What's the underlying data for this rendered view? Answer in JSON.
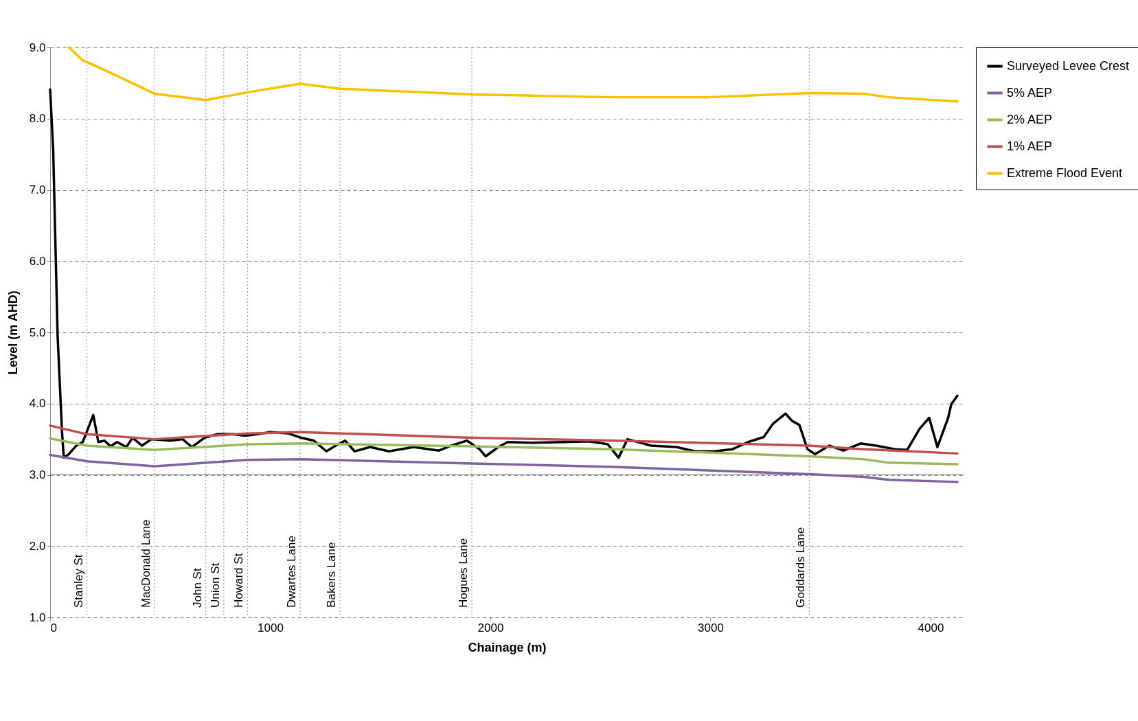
{
  "chart_data": {
    "type": "line",
    "xlabel": "Chainage (m)",
    "ylabel": "Level (m AHD)",
    "xlim": [
      0,
      4150
    ],
    "xticks": [
      0,
      1000,
      2000,
      3000,
      4000
    ],
    "ylim": [
      1,
      9
    ],
    "yticks": [
      {
        "value": 1,
        "label": "1.0"
      },
      {
        "value": 2,
        "label": "2.0"
      },
      {
        "value": 3,
        "label": "3.0"
      },
      {
        "value": 4,
        "label": "4.0"
      },
      {
        "value": 5,
        "label": "5.0"
      },
      {
        "value": 6,
        "label": "6.0"
      },
      {
        "value": 7,
        "label": "7.0"
      },
      {
        "value": 8,
        "label": "8.0"
      },
      {
        "value": 9,
        "label": "9.0"
      }
    ],
    "grid": "y",
    "legend": "right",
    "line_style": "solid",
    "series": [
      {
        "name": "Surveyed Levee Crest",
        "color": "#000000",
        "x": [
          0,
          14,
          34,
          54,
          62,
          85,
          119,
          148,
          176,
          196,
          219,
          247,
          275,
          304,
          346,
          375,
          417,
          460,
          545,
          602,
          644,
          701,
          758,
          829,
          886,
          943,
          999,
          1084,
          1141,
          1198,
          1255,
          1297,
          1340,
          1383,
          1454,
          1539,
          1652,
          1766,
          1823,
          1894,
          1951,
          1979,
          2036,
          2079,
          2192,
          2334,
          2447,
          2533,
          2583,
          2623,
          2731,
          2845,
          2930,
          3015,
          3100,
          3171,
          3242,
          3285,
          3341,
          3370,
          3404,
          3441,
          3475,
          3540,
          3605,
          3682,
          3753,
          3838,
          3894,
          3951,
          3994,
          4031,
          4080,
          4094,
          4122
        ],
        "values": [
          8.41,
          7.55,
          4.95,
          3.6,
          3.24,
          3.29,
          3.41,
          3.46,
          3.68,
          3.84,
          3.46,
          3.48,
          3.4,
          3.46,
          3.39,
          3.52,
          3.41,
          3.5,
          3.48,
          3.5,
          3.39,
          3.52,
          3.57,
          3.57,
          3.55,
          3.57,
          3.6,
          3.58,
          3.52,
          3.48,
          3.33,
          3.41,
          3.48,
          3.33,
          3.39,
          3.33,
          3.39,
          3.34,
          3.41,
          3.48,
          3.36,
          3.26,
          3.39,
          3.46,
          3.45,
          3.46,
          3.47,
          3.43,
          3.24,
          3.5,
          3.41,
          3.39,
          3.33,
          3.33,
          3.36,
          3.46,
          3.53,
          3.72,
          3.86,
          3.76,
          3.7,
          3.36,
          3.29,
          3.41,
          3.34,
          3.44,
          3.41,
          3.36,
          3.35,
          3.65,
          3.8,
          3.39,
          3.8,
          3.99,
          4.11
        ]
      },
      {
        "name": "5% AEP",
        "color": "#8064a2",
        "x": [
          0,
          167,
          474,
          897,
          1136,
          1916,
          2561,
          3449,
          3696,
          3810,
          4122
        ],
        "values": [
          3.28,
          3.19,
          3.12,
          3.21,
          3.22,
          3.16,
          3.11,
          3.01,
          2.97,
          2.93,
          2.9
        ]
      },
      {
        "name": "2% AEP",
        "color": "#9bbb59",
        "x": [
          0,
          167,
          474,
          897,
          1136,
          1916,
          2561,
          3449,
          3696,
          3810,
          4122
        ],
        "values": [
          3.51,
          3.41,
          3.35,
          3.43,
          3.44,
          3.4,
          3.36,
          3.26,
          3.22,
          3.17,
          3.15
        ]
      },
      {
        "name": "1% AEP",
        "color": "#c0504d",
        "x": [
          0,
          167,
          474,
          897,
          1136,
          1916,
          2561,
          3449,
          3696,
          4122
        ],
        "values": [
          3.69,
          3.57,
          3.5,
          3.58,
          3.6,
          3.52,
          3.48,
          3.41,
          3.36,
          3.3
        ]
      },
      {
        "name": "Extreme Flood Event",
        "color": "#ffc000",
        "x": [
          85,
          148,
          290,
          474,
          707,
          897,
          1136,
          1317,
          1916,
          2561,
          2987,
          3449,
          3696,
          3810,
          4122
        ],
        "values": [
          9.0,
          8.82,
          8.62,
          8.35,
          8.26,
          8.37,
          8.49,
          8.42,
          8.34,
          8.3,
          8.3,
          8.36,
          8.35,
          8.3,
          8.24
        ]
      }
    ],
    "ref_lines": [
      {
        "axis": "y",
        "value": 3,
        "color": "#808080",
        "line_style": "solid"
      },
      {
        "axis": "x",
        "value": 167,
        "label": "Stanley St",
        "color": "#a0a0a0",
        "line_style": "dotted"
      },
      {
        "axis": "x",
        "value": 474,
        "label": "MacDonald Lane",
        "color": "#a0a0a0",
        "line_style": "dotted"
      },
      {
        "axis": "x",
        "value": 707,
        "label": "John St",
        "color": "#a0a0a0",
        "line_style": "dotted"
      },
      {
        "axis": "x",
        "value": 789,
        "label": "Union St",
        "color": "#a0a0a0",
        "line_style": "dotted"
      },
      {
        "axis": "x",
        "value": 897,
        "label": "Howard St",
        "color": "#a0a0a0",
        "line_style": "dotted"
      },
      {
        "axis": "x",
        "value": 1136,
        "label": "Dwartes Lane",
        "color": "#a0a0a0",
        "line_style": "dotted"
      },
      {
        "axis": "x",
        "value": 1317,
        "label": "Bakers Lane",
        "color": "#a0a0a0",
        "line_style": "dotted"
      },
      {
        "axis": "x",
        "value": 1916,
        "label": "Hogues Lane",
        "color": "#a0a0a0",
        "line_style": "dotted"
      },
      {
        "axis": "x",
        "value": 3449,
        "label": "Goddards Lane",
        "color": "#a0a0a0",
        "line_style": "dotted"
      }
    ]
  }
}
